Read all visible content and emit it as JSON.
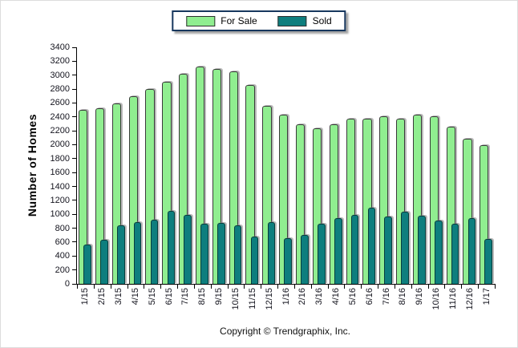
{
  "chart_data": {
    "type": "bar",
    "title": "",
    "ylabel": "Number of Homes",
    "xlabel": "",
    "ylim": [
      0,
      3400
    ],
    "ytick_step": 200,
    "yticks": [
      0,
      200,
      400,
      600,
      800,
      1000,
      1200,
      1400,
      1600,
      1800,
      2000,
      2200,
      2400,
      2600,
      2800,
      3000,
      3200,
      3400
    ],
    "grid": false,
    "legend_position": "top-center",
    "categories": [
      "1/15",
      "2/15",
      "3/15",
      "4/15",
      "5/15",
      "6/15",
      "7/15",
      "8/15",
      "9/15",
      "10/15",
      "11/15",
      "12/15",
      "1/16",
      "2/16",
      "3/16",
      "4/16",
      "5/16",
      "6/16",
      "7/16",
      "8/16",
      "9/16",
      "10/16",
      "11/16",
      "12/16",
      "1/17"
    ],
    "series": [
      {
        "name": "For Sale",
        "color": "#90EE90",
        "border_color": "#3a3a3a",
        "values": [
          2500,
          2530,
          2590,
          2700,
          2800,
          2910,
          3020,
          3120,
          3090,
          3050,
          2860,
          2560,
          2430,
          2290,
          2240,
          2290,
          2370,
          2370,
          2410,
          2380,
          2430,
          2410,
          2260,
          2090,
          1990
        ]
      },
      {
        "name": "Sold",
        "color": "#0E7E7E",
        "border_color": "#073d3d",
        "values": [
          570,
          630,
          840,
          890,
          920,
          1050,
          990,
          870,
          880,
          840,
          680,
          890,
          660,
          700,
          860,
          940,
          990,
          1090,
          970,
          1040,
          980,
          910,
          860,
          950,
          640
        ]
      }
    ]
  },
  "legend": {
    "for_sale_label": "For Sale",
    "sold_label": "Sold"
  },
  "footer": {
    "text": "Copyright © Trendgraphix, Inc."
  }
}
